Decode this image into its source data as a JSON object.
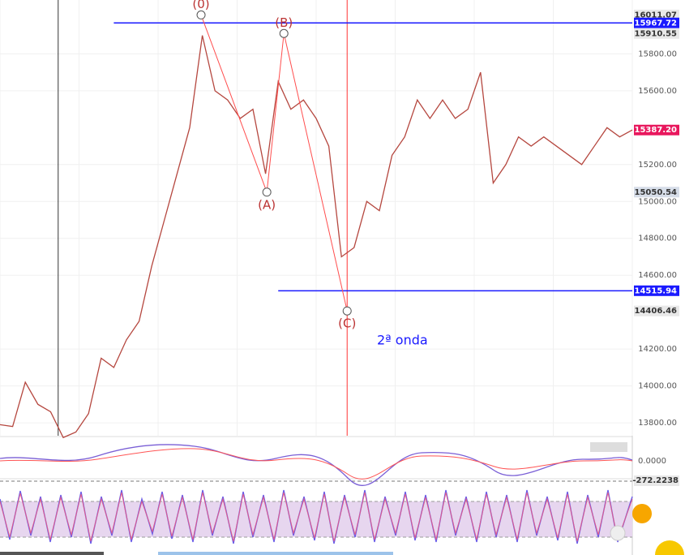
{
  "chart_data": {
    "type": "line",
    "x": [
      0,
      2,
      4,
      6,
      8,
      10,
      12,
      14,
      16,
      18,
      20,
      22,
      24,
      26,
      28,
      30,
      32,
      34,
      36,
      38,
      40,
      42,
      44,
      46,
      48,
      50,
      52,
      54,
      56,
      58,
      60,
      62,
      64,
      66,
      68,
      70,
      72,
      74,
      76,
      78,
      80,
      82,
      84,
      86,
      88,
      90,
      92,
      94,
      96,
      98,
      100
    ],
    "series": [
      {
        "name": "Price",
        "color": "#b5473f",
        "values": [
          13790,
          13780,
          14020,
          13900,
          13860,
          13720,
          13750,
          13850,
          14150,
          14100,
          14250,
          14350,
          14650,
          14900,
          15150,
          15400,
          15900,
          15600,
          15550,
          15450,
          15500,
          15150,
          15650,
          15500,
          15550,
          15450,
          15300,
          14700,
          14750,
          15000,
          14950,
          15250,
          15350,
          15550,
          15450,
          15550,
          15450,
          15500,
          15700,
          15100,
          15200,
          15350,
          15300,
          15350,
          15300,
          15250,
          15200,
          15300,
          15400,
          15350,
          15387.2
        ]
      }
    ],
    "xlim": [
      0,
      100
    ],
    "ylim": [
      13730,
      16092
    ],
    "yticks": [
      {
        "value": 13800,
        "label": "13800.00"
      },
      {
        "value": 14000,
        "label": "14000.00"
      },
      {
        "value": 14200,
        "label": "14200.00"
      },
      {
        "value": 14600,
        "label": "14600.00"
      },
      {
        "value": 14800,
        "label": "14800.00"
      },
      {
        "value": 15000,
        "label": "15000.00"
      },
      {
        "value": 15200,
        "label": "15200.00"
      },
      {
        "value": 15600,
        "label": "15600.00"
      },
      {
        "value": 15800,
        "label": "15800.00"
      }
    ],
    "price_labels": [
      {
        "value": 16011.07,
        "label": "16011.07",
        "color": "#e8e8e8"
      },
      {
        "value": 15967.72,
        "label": "15967.72",
        "color": "#1a1aff"
      },
      {
        "value": 15910.55,
        "label": "15910.55",
        "color": "#e8e8e8"
      },
      {
        "value": 15387.2,
        "label": "15387.20",
        "color": "#e8175d"
      },
      {
        "value": 15050.54,
        "label": "15050.54",
        "color": "#d6dde8"
      },
      {
        "value": 14515.94,
        "label": "14515.94",
        "color": "#1a1aff"
      },
      {
        "value": 14406.46,
        "label": "14406.46",
        "color": "#e8e8e8"
      }
    ],
    "hlines": [
      {
        "value": 15967.72,
        "from": 18
      },
      {
        "value": 14515.94,
        "from": 44
      }
    ],
    "vlines": [
      {
        "x": 9.2,
        "color": "#333333"
      },
      {
        "x": 54.9,
        "color": "#ff3333"
      }
    ],
    "waves": {
      "color": "#ff4d4d",
      "x": [
        31.8,
        42.2,
        44.9,
        54.9
      ],
      "values": [
        16011.07,
        15050.54,
        15910.55,
        14406.46
      ],
      "labels": [
        "(0)",
        "(A)",
        "(B)",
        "(C)"
      ]
    },
    "annotation": "2ª onda",
    "indicator_labels": [
      "0.0000",
      "-272.2238"
    ]
  }
}
